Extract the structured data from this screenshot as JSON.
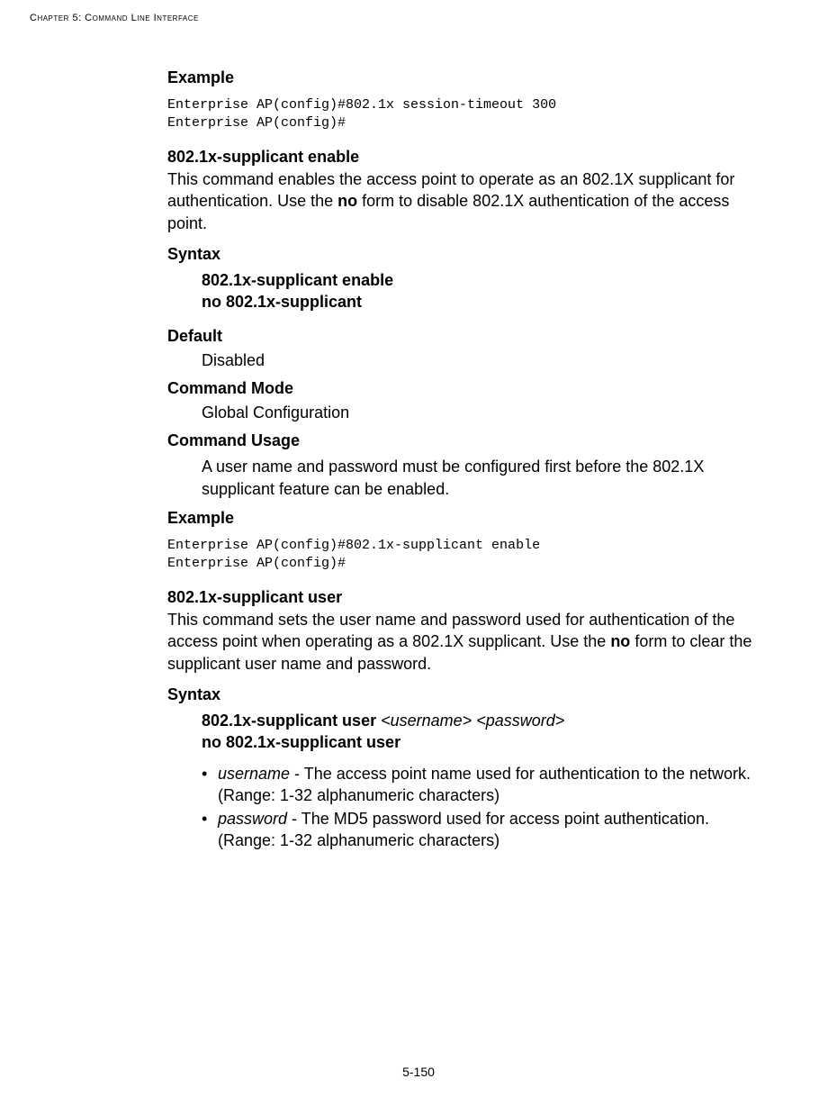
{
  "header": {
    "chapter": "Chapter 5: Command Line Interface"
  },
  "section1": {
    "heading": "Example",
    "code": "Enterprise AP(config)#802.1x session-timeout 300\nEnterprise AP(config)#"
  },
  "cmd1": {
    "title": "802.1x-supplicant enable",
    "desc_pre": "This command enables the access point to operate as an 802.1X supplicant for authentication. Use the ",
    "desc_bold": "no",
    "desc_post": " form to disable 802.1X authentication of the access point.",
    "syntax_heading": "Syntax",
    "syntax_line1": "802.1x-supplicant enable",
    "syntax_line2": "no 802.1x-supplicant",
    "default_heading": "Default",
    "default_value": "Disabled",
    "mode_heading": "Command Mode",
    "mode_value": "Global Configuration",
    "usage_heading": "Command Usage",
    "usage_text": "A user name and password must be configured first before the 802.1X supplicant feature can be enabled.",
    "example_heading": "Example",
    "example_code": "Enterprise AP(config)#802.1x-supplicant enable\nEnterprise AP(config)#"
  },
  "cmd2": {
    "title": "802.1x-supplicant user",
    "desc_pre": "This command sets the user name and password used for authentication of the access point when operating as a 802.1X supplicant. Use the ",
    "desc_bold": "no",
    "desc_post": " form to clear the supplicant user name and password.",
    "syntax_heading": "Syntax",
    "syntax_line1_bold": "802.1x-supplicant user ",
    "syntax_line1_ital1": "<username>",
    "syntax_line1_mid": " ",
    "syntax_line1_ital2": "<password>",
    "syntax_line2": "no 802.1x-supplicant user",
    "param1_ital": "username",
    "param1_text": " - The access point name used for authentication to the network. (Range: 1-32 alphanumeric characters)",
    "param2_ital": "password",
    "param2_text": " - The MD5 password used for access point authentication. (Range: 1-32 alphanumeric characters)"
  },
  "footer": {
    "page": "5-150"
  }
}
